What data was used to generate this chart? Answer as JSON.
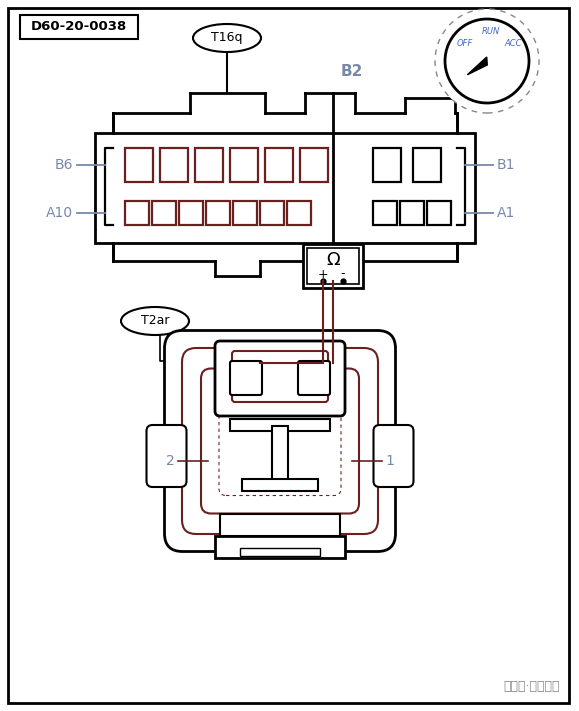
{
  "bg_color": "#ffffff",
  "border_color": "#000000",
  "dark_red": "#6b2020",
  "label_color": "#7788aa",
  "title": "D60-20-0038",
  "connector_label_top": "T16q",
  "connector_label_mid": "B2",
  "connector_label_left_top": "B6",
  "connector_label_left_bot": "A10",
  "connector_label_right_top": "B1",
  "connector_label_right_bot": "A1",
  "sensor_label": "T2ar",
  "pin1_label": "1",
  "pin2_label": "2",
  "watermark": "中华网·汽车频道",
  "ign_labels": [
    "OFF",
    "RUN",
    "ACC"
  ],
  "figsize": [
    5.79,
    7.11
  ],
  "dpi": 100
}
